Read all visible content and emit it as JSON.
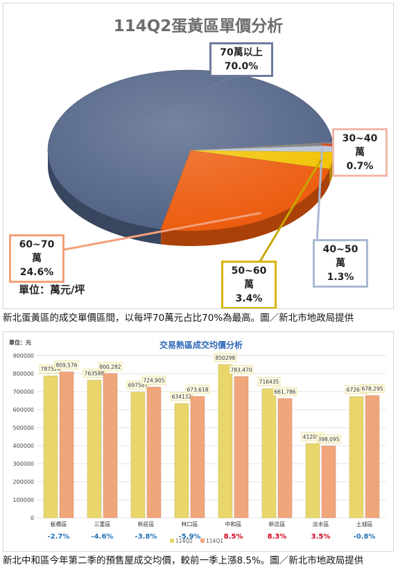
{
  "charts": [
    {
      "type": "pie",
      "title": "114Q2蛋黃區單價分析",
      "unit_label": "單位：萬元/坪",
      "slices": [
        {
          "label": "70萬以上",
          "value_label": "70.0%",
          "value": 70.0,
          "color": "#4f6184"
        },
        {
          "label": "30~40萬",
          "value_label": "0.7%",
          "value": 0.7,
          "color": "#7f7f7f"
        },
        {
          "label": "40~50萬",
          "value_label": "1.3%",
          "value": 1.3,
          "color": "#b9c3d6"
        },
        {
          "label": "50~60萬",
          "value_label": "3.4%",
          "value": 3.4,
          "color": "#f2c200"
        },
        {
          "label": "60~70萬",
          "value_label": "24.6%",
          "value": 24.6,
          "color": "#ec5a0c"
        }
      ],
      "caption": "新北蛋黃區的成交單價區間，以每坪70萬元占比70%為最高。圖／新北市地政局提供"
    },
    {
      "type": "bar",
      "title": "交易熱區成交均價分析",
      "unit_label": "單位：元",
      "categories": [
        "板橋區",
        "三重區",
        "新莊區",
        "林口區",
        "中和區",
        "新店區",
        "淡水區",
        "土城區"
      ],
      "series": [
        {
          "name": "114Q2",
          "values": [
            787524,
            763588,
            697587,
            634132,
            850298,
            716435,
            412051,
            672674
          ],
          "labels": [
            "787524",
            "763588",
            "697587",
            "634132",
            "850298",
            "716435",
            "412051",
            "672674"
          ],
          "color": "#e8d66a"
        },
        {
          "name": "114Q1",
          "values": [
            809576,
            800282,
            724905,
            673618,
            783470,
            661786,
            398095,
            678295
          ],
          "labels": [
            "809,576",
            "800,282",
            "724,905",
            "673,618",
            "783,470",
            "661,786",
            "398,095",
            "678,295"
          ],
          "color": "#f0a57a"
        }
      ],
      "changes": [
        "-2.7%",
        "-4.6%",
        "-3.8%",
        "-5.9%",
        "8.5%",
        "8.3%",
        "3.5%",
        "-0.8%"
      ],
      "change_colors": {
        "negative": "#1f6fb5",
        "positive": "#d0021b"
      },
      "ylim": [
        0,
        900000
      ],
      "yticks": [
        "0",
        "100000",
        "200000",
        "300000",
        "400000",
        "500000",
        "600000",
        "700000",
        "800000",
        "900000"
      ],
      "grid": true,
      "legend_position": "bottom",
      "caption": "新北中和區今年第二季的預售屋成交均價，較前一季上漲8.5%。圖／新北市地政局提供"
    }
  ]
}
